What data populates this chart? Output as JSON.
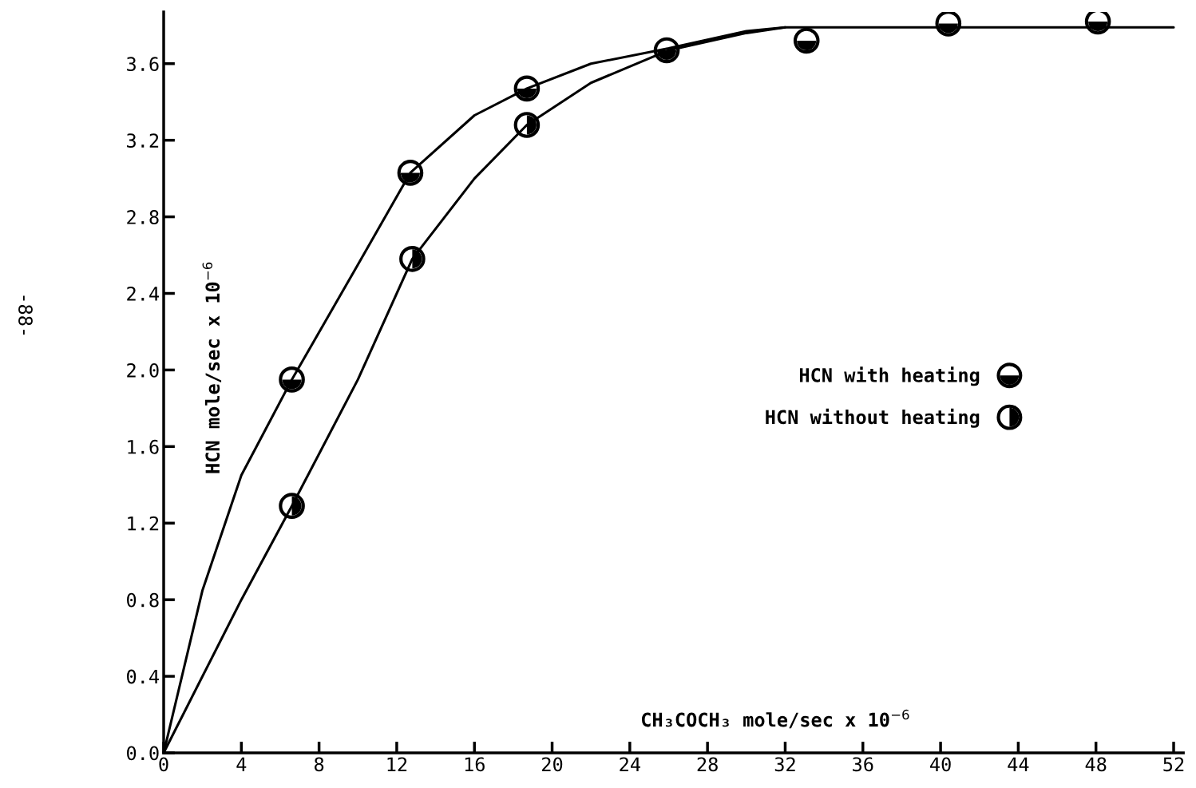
{
  "chart_data": {
    "type": "scatter",
    "xlabel": "CH₃COCH₃ mole/sec x 10$^{−6}$",
    "ylabel": "HCN mole/sec x 10$^{−6}$",
    "series": [
      {
        "name": "HCN with heating",
        "color": "#000000",
        "marker": "circle",
        "x": [
          6.6,
          12.7,
          18.7,
          25.9,
          33.1,
          40.4,
          48.1
        ],
        "values": [
          1.95,
          3.03,
          3.47,
          3.67,
          3.72,
          3.81,
          3.82
        ]
      },
      {
        "name": "HCN without heating",
        "color": "#000000",
        "marker": "circle",
        "x": [
          6.6,
          12.8,
          18.7
        ],
        "values": [
          1.29,
          2.58,
          3.28
        ]
      },
      {
        "color": "#000000",
        "type": "line",
        "x": [
          0,
          2,
          4,
          6.6,
          10,
          12.7,
          16,
          18.7,
          22,
          26,
          30,
          32,
          40,
          52
        ],
        "values": [
          0,
          0.85,
          1.45,
          1.95,
          2.55,
          3.03,
          3.33,
          3.47,
          3.6,
          3.68,
          3.77,
          3.79,
          3.79,
          3.79
        ]
      },
      {
        "color": "#000000",
        "type": "line",
        "x": [
          0,
          4,
          6.6,
          10,
          12.8,
          16,
          18.7,
          22,
          26,
          30,
          32
        ],
        "values": [
          0,
          0.8,
          1.29,
          1.95,
          2.58,
          3.0,
          3.28,
          3.5,
          3.67,
          3.76,
          3.79
        ]
      }
    ],
    "xlim": [
      0,
      52.5
    ],
    "ylim": [
      0,
      3.87
    ],
    "xticks": [
      0,
      4,
      8,
      12,
      16,
      20,
      24,
      28,
      32,
      36,
      40,
      44,
      48,
      52
    ],
    "yticks": [
      {
        "value": 0,
        "label": "0.0"
      },
      0.4,
      0.8,
      1.2,
      1.6,
      {
        "value": 2,
        "label": "2.0"
      },
      2.4,
      2.8,
      3.2,
      3.6
    ],
    "grid": false,
    "legend": "right",
    "annotations": [
      "-88-"
    ]
  }
}
